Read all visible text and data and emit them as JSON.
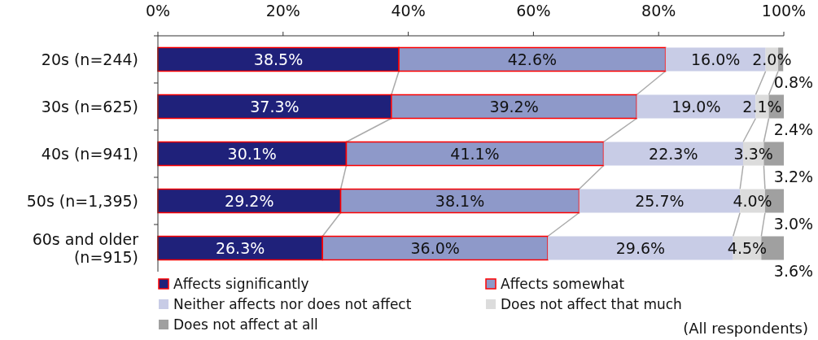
{
  "chart_data": {
    "type": "bar",
    "orientation": "horizontal",
    "stacked": true,
    "legend": "bottom",
    "grid": false,
    "categories": [
      "20s (n=244)",
      "30s (n=625)",
      "40s (n=941)",
      "50s (n=1,395)",
      "60s and older (n=915)"
    ],
    "xlim": [
      0,
      100
    ],
    "xticks": [
      {
        "value": 0,
        "label": "0%"
      },
      {
        "value": 20,
        "label": "20%"
      },
      {
        "value": 40,
        "label": "40%"
      },
      {
        "value": 60,
        "label": "60%"
      },
      {
        "value": 80,
        "label": "80%"
      },
      {
        "value": 100,
        "label": "100%"
      }
    ],
    "series": [
      {
        "name": "Affects significantly",
        "color": "#1f217a",
        "values": [
          38.5,
          37.3,
          30.1,
          29.2,
          26.3
        ],
        "value_labels": [
          "38.5%",
          "37.3%",
          "30.1%",
          "29.2%",
          "26.3%"
        ]
      },
      {
        "name": "Affects somewhat",
        "color": "#8e99c9",
        "values": [
          42.6,
          39.2,
          41.1,
          38.1,
          36.0
        ],
        "value_labels": [
          "42.6%",
          "39.2%",
          "41.1%",
          "38.1%",
          "36.0%"
        ]
      },
      {
        "name": "Neither affects nor does not affect",
        "color": "#c8cce6",
        "values": [
          16.0,
          19.0,
          22.3,
          25.7,
          29.6
        ],
        "value_labels": [
          "16.0%",
          "19.0%",
          "22.3%",
          "25.7%",
          "29.6%"
        ]
      },
      {
        "name": "Does not affect that much",
        "color": "#dcdcdc",
        "values": [
          2.0,
          2.1,
          3.3,
          4.0,
          4.5
        ],
        "value_labels": [
          "2.0%",
          "2.1%",
          "3.3%",
          "4.0%",
          "4.5%"
        ]
      },
      {
        "name": "Does not affect at all",
        "color": "#a0a0a0",
        "values": [
          0.8,
          2.4,
          3.2,
          3.0,
          3.6
        ],
        "value_labels": [
          "0.8%",
          "2.4%",
          "3.2%",
          "3.0%",
          "3.6%"
        ]
      }
    ],
    "annotations": [
      "(All respondents)"
    ]
  }
}
